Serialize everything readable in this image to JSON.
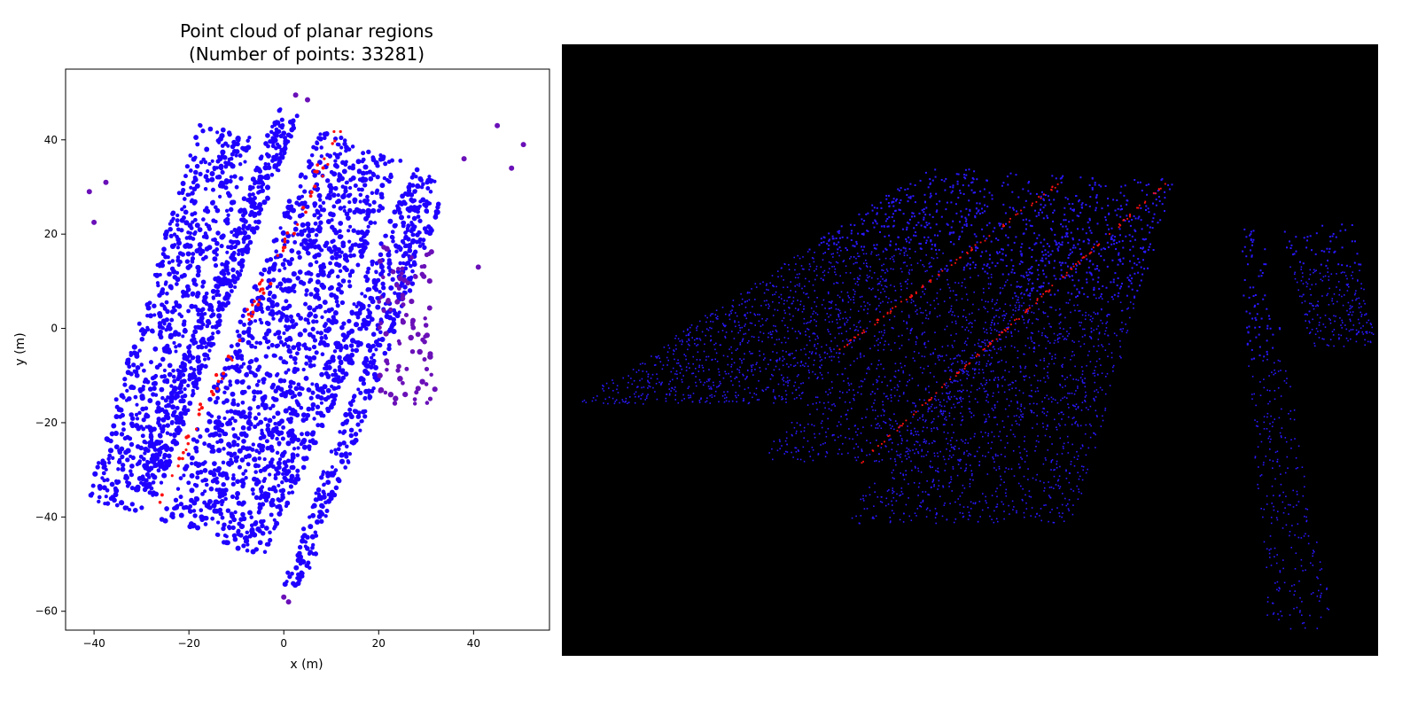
{
  "chart_data": [
    {
      "type": "scatter",
      "title": "Point cloud of planar regions",
      "subtitle": "(Number of points: 33281)",
      "xlabel": "x (m)",
      "ylabel": "y (m)",
      "xlim": [
        -46,
        56
      ],
      "ylim": [
        -64,
        55
      ],
      "xticks": [
        -40,
        -20,
        0,
        20,
        40
      ],
      "yticks": [
        -60,
        -40,
        -20,
        0,
        20,
        40
      ],
      "xtick_labels": [
        "−40",
        "−20",
        "0",
        "20",
        "40"
      ],
      "ytick_labels": [
        "−60",
        "−40",
        "−20",
        "0",
        "20",
        "40"
      ],
      "grid": false,
      "colors": {
        "primary_points": "#1f00ff",
        "secondary_points": "#6a10b8",
        "highlight_points": "#ff1010"
      },
      "description_regions": [
        {
          "name": "left strip",
          "color": "primary",
          "x": [
            -42,
            -4
          ],
          "y": [
            -43,
            46
          ]
        },
        {
          "name": "middle strip",
          "color": "primary",
          "x": [
            -20,
            31
          ],
          "y": [
            -50,
            41
          ]
        },
        {
          "name": "right edge strip",
          "color": "primary",
          "x": [
            -6,
            35
          ],
          "y": [
            -55,
            28
          ]
        }
      ],
      "outliers": [
        {
          "x": -41,
          "y": 29
        },
        {
          "x": -40,
          "y": 22.5
        },
        {
          "x": -37.5,
          "y": 31
        },
        {
          "x": 2.5,
          "y": 49.5
        },
        {
          "x": 5,
          "y": 48.5
        },
        {
          "x": 38,
          "y": 36
        },
        {
          "x": 41,
          "y": 13
        },
        {
          "x": 45,
          "y": 43
        },
        {
          "x": 48,
          "y": 34
        },
        {
          "x": 50.5,
          "y": 39
        },
        {
          "x": 0,
          "y": -57
        },
        {
          "x": 1,
          "y": -58
        }
      ]
    },
    {
      "type": "scatter",
      "title": "",
      "grid": false,
      "colors": {
        "background": "#000000",
        "primary_points": "#2a18ff",
        "highlight_points": "#ff1010"
      }
    }
  ]
}
